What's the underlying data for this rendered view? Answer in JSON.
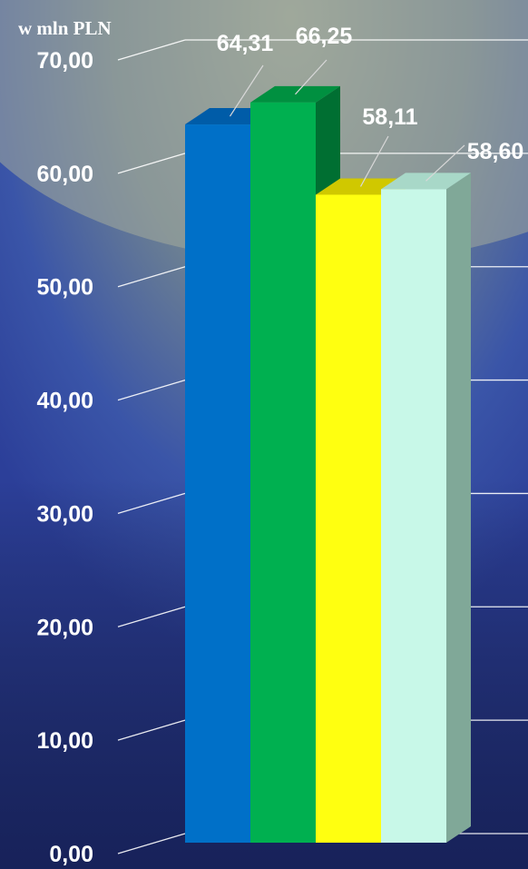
{
  "chart_data": {
    "type": "bar",
    "ylabel": "w mln PLN",
    "ylim": [
      0,
      70
    ],
    "yticks": [
      "0,00",
      "10,00",
      "20,00",
      "30,00",
      "40,00",
      "50,00",
      "60,00",
      "70,00"
    ],
    "ytick_values": [
      0,
      10,
      20,
      30,
      40,
      50,
      60,
      70
    ],
    "values": [
      64.31,
      66.25,
      58.11,
      58.6
    ],
    "value_labels": [
      "64,31",
      "66,25",
      "58,11",
      "58,60"
    ],
    "grid": true,
    "style": "3d",
    "colors": {
      "bar_fronts": [
        "#0070c8",
        "#00b050",
        "#ffff10",
        "#c8f8e8"
      ],
      "bar_tops": [
        "#005ca8",
        "#009040",
        "#d0c800",
        "#a8d8c8"
      ],
      "bar_sides": [
        "#004f8f",
        "#006f32",
        "#b0a800",
        "#80a898"
      ],
      "gridline": "#ffffff",
      "text": "#ffffff"
    }
  }
}
